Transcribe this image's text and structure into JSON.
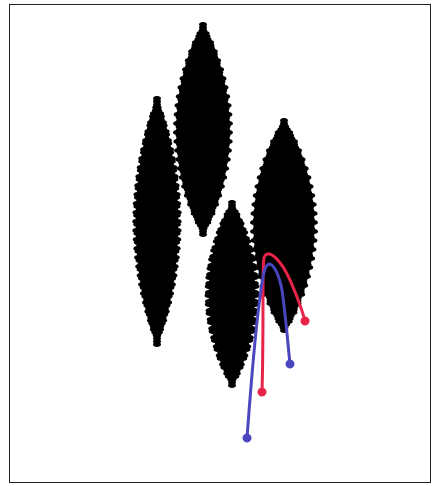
{
  "figure": {
    "background": "#ffffff",
    "frame_color": "#222222",
    "blob_color": "#000000",
    "curves": [
      {
        "id": "red-curve",
        "color": "#e8234a"
      },
      {
        "id": "blue-curve",
        "color": "#4a46c0"
      }
    ]
  }
}
